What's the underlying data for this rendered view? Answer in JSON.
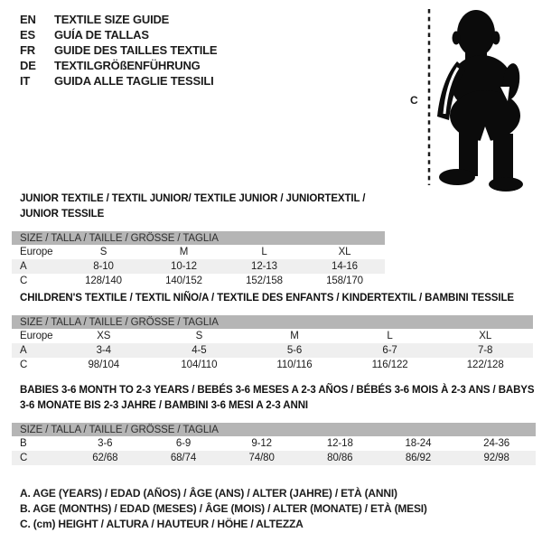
{
  "languages": [
    {
      "code": "EN",
      "label": "TEXTILE SIZE GUIDE"
    },
    {
      "code": "ES",
      "label": "GUÍA DE TALLAS"
    },
    {
      "code": "FR",
      "label": "GUIDE DES TAILLES TEXTILE"
    },
    {
      "code": "DE",
      "label": "TEXTILGRÖßENFÜHRUNG"
    },
    {
      "code": "IT",
      "label": "GUIDA ALLE TAGLIE TESSILI"
    }
  ],
  "figure": {
    "height_label": "C",
    "silhouette": "toddler-silhouette"
  },
  "tables": [
    {
      "title": "JUNIOR TEXTILE / TEXTIL JUNIOR/ TEXTILE JUNIOR / JUNIORTEXTIL / JUNIOR TESSILE",
      "size_header": "SIZE / TALLA / TAILLE / GRÖSSE / TAGLIA",
      "rows": [
        {
          "label": "Europe",
          "values": [
            "S",
            "M",
            "L",
            "XL"
          ],
          "shaded": false
        },
        {
          "label": "A",
          "values": [
            "8-10",
            "10-12",
            "12-13",
            "14-16"
          ],
          "shaded": true
        },
        {
          "label": "C",
          "values": [
            "128/140",
            "140/152",
            "152/158",
            "158/170"
          ],
          "shaded": false
        }
      ]
    },
    {
      "title": "CHILDREN'S TEXTILE / TEXTIL NIÑO/A / TEXTILE DES ENFANTS / KINDERTEXTIL / BAMBINI TESSILE",
      "size_header": "SIZE / TALLA / TAILLE / GRÖSSE / TAGLIA",
      "rows": [
        {
          "label": "Europe",
          "values": [
            "XS",
            "S",
            "M",
            "L",
            "XL"
          ],
          "shaded": false
        },
        {
          "label": "A",
          "values": [
            "3-4",
            "4-5",
            "5-6",
            "6-7",
            "7-8"
          ],
          "shaded": true
        },
        {
          "label": "C",
          "values": [
            "98/104",
            "104/110",
            "110/116",
            "116/122",
            "122/128"
          ],
          "shaded": false
        }
      ]
    },
    {
      "title": "BABIES 3-6 MONTH TO 2-3 YEARS / BEBÉS 3-6 MESES A 2-3 AÑOS / BÉBÉS 3-6 MOIS À 2-3 ANS / BABYS 3-6 MONATE BIS 2-3 JAHRE / BAMBINI 3-6 MESI A 2-3 ANNI",
      "size_header": "SIZE / TALLA / TAILLE / GRÖSSE / TAGLIA",
      "rows": [
        {
          "label": "B",
          "values": [
            "3-6",
            "6-9",
            "9-12",
            "12-18",
            "18-24",
            "24-36"
          ],
          "shaded": false
        },
        {
          "label": "C",
          "values": [
            "62/68",
            "68/74",
            "74/80",
            "80/86",
            "86/92",
            "92/98"
          ],
          "shaded": true
        }
      ]
    }
  ],
  "footnotes": [
    "A. AGE (YEARS) / EDAD (AÑOS) / ÂGE (ANS) / ALTER (JAHRE) / ETÀ (ANNI)",
    "B. AGE (MONTHS) / EDAD (MESES) / ÂGE (MOIS) / ALTER (MONATE) / ETÀ (MESI)",
    "C. (cm) HEIGHT / ALTURA / HAUTEUR / HÖHE / ALTEZZA"
  ],
  "colors": {
    "text": "#1c1c1c",
    "header_bar": "#b5b5b5",
    "shaded_row": "#efefef",
    "silhouette": "#0b0b0b"
  }
}
